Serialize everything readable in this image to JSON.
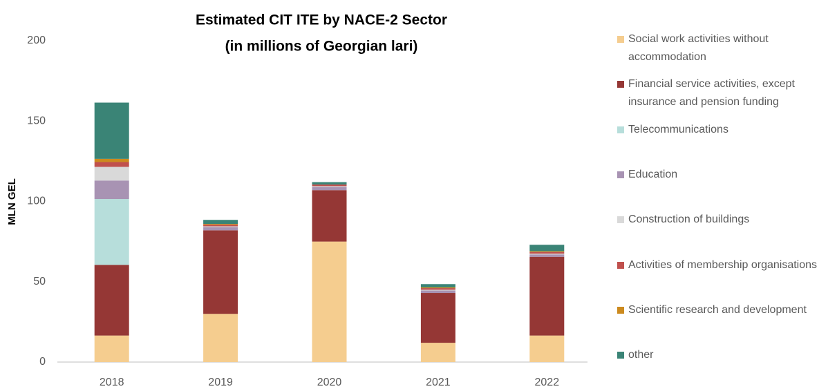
{
  "chart_data": {
    "type": "stacked_bar",
    "title": "Estimated CIT ITE by NACE-2 Sector",
    "subtitle": "(in millions of Georgian lari)",
    "y_label": "MLN GEL",
    "categories": [
      "2018",
      "2019",
      "2020",
      "2021",
      "2022"
    ],
    "ylim": [
      0,
      200
    ],
    "yticks": [
      0,
      50,
      100,
      150,
      200
    ],
    "grid": false,
    "legend": "right",
    "series": [
      {
        "name": "Social work activities without accommodation",
        "color": "#f5cd8f",
        "values": [
          16.5,
          30,
          75,
          12,
          16.5
        ]
      },
      {
        "name": "Financial service activities, except insurance and pension funding",
        "color": "#953735",
        "values": [
          44,
          52,
          32,
          31,
          49
        ]
      },
      {
        "name": "Telecommunications",
        "color": "#b7dedb",
        "values": [
          41,
          0,
          0,
          0,
          0
        ]
      },
      {
        "name": "Education",
        "color": "#a893b3",
        "values": [
          11.5,
          2,
          2,
          1.5,
          1.5
        ]
      },
      {
        "name": "Construction of buildings",
        "color": "#d9d9d9",
        "values": [
          8.5,
          0.5,
          0.5,
          0.5,
          0.5
        ]
      },
      {
        "name": "Activities of membership organisations",
        "color": "#c0504d",
        "values": [
          3,
          1,
          1,
          1,
          1
        ]
      },
      {
        "name": "Scientific research and development",
        "color": "#cc8a1e",
        "values": [
          2,
          0.5,
          0,
          0.5,
          0.5
        ]
      },
      {
        "name": "other",
        "color": "#3a8476",
        "values": [
          35,
          2.5,
          1.5,
          2,
          4
        ]
      }
    ]
  }
}
